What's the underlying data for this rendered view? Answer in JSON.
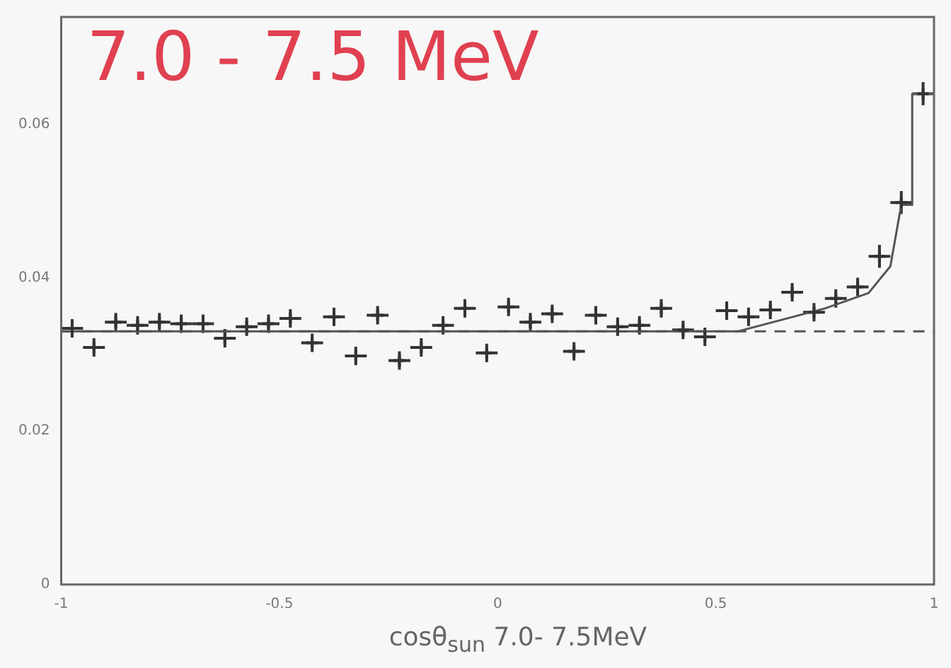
{
  "chart_data": {
    "type": "scatter",
    "xlabel": "cosθ$_{sun}$  7.0- 7.5MeV",
    "annotations": [
      "7.0 - 7.5 MeV"
    ],
    "x": [
      -0.975,
      -0.925,
      -0.875,
      -0.825,
      -0.775,
      -0.725,
      -0.675,
      -0.625,
      -0.575,
      -0.525,
      -0.475,
      -0.425,
      -0.375,
      -0.325,
      -0.275,
      -0.225,
      -0.175,
      -0.125,
      -0.075,
      -0.025,
      0.025,
      0.075,
      0.125,
      0.175,
      0.225,
      0.275,
      0.325,
      0.375,
      0.425,
      0.475,
      0.525,
      0.575,
      0.625,
      0.675,
      0.725,
      0.775,
      0.825,
      0.875,
      0.925,
      0.975
    ],
    "series": [
      {
        "type": "scatter",
        "color": "#333333",
        "marker": "cross",
        "values": [
          0.0334,
          0.0309,
          0.0342,
          0.0338,
          0.0342,
          0.034,
          0.034,
          0.0321,
          0.0336,
          0.034,
          0.0347,
          0.0315,
          0.0349,
          0.0298,
          0.0351,
          0.0292,
          0.0309,
          0.0338,
          0.036,
          0.0302,
          0.0362,
          0.0342,
          0.0353,
          0.0304,
          0.0351,
          0.0336,
          0.0338,
          0.036,
          0.0332,
          0.0323,
          0.0357,
          0.0349,
          0.0358,
          0.0381,
          0.0355,
          0.0373,
          0.0388,
          0.0428,
          0.0498,
          0.064
        ],
        "errors": [
          0.0012,
          0.0012,
          0.0012,
          0.0012,
          0.0012,
          0.0012,
          0.0012,
          0.0012,
          0.0012,
          0.0012,
          0.0012,
          0.0012,
          0.0012,
          0.0012,
          0.0012,
          0.0012,
          0.0012,
          0.0012,
          0.0012,
          0.0012,
          0.0012,
          0.0012,
          0.0012,
          0.0012,
          0.0012,
          0.0012,
          0.0012,
          0.0012,
          0.0012,
          0.0012,
          0.0012,
          0.0012,
          0.0012,
          0.0012,
          0.0012,
          0.0012,
          0.0012,
          0.0015,
          0.0015,
          0.0015
        ],
        "xerrors": [
          0.025,
          0.025,
          0.025,
          0.025,
          0.025,
          0.025,
          0.025,
          0.025,
          0.025,
          0.025,
          0.025,
          0.025,
          0.025,
          0.025,
          0.025,
          0.025,
          0.025,
          0.025,
          0.025,
          0.025,
          0.025,
          0.025,
          0.025,
          0.025,
          0.025,
          0.025,
          0.025,
          0.025,
          0.025,
          0.025,
          0.025,
          0.025,
          0.025,
          0.025,
          0.025,
          0.025,
          0.025,
          0.025,
          0.025,
          0.025
        ]
      },
      {
        "type": "line",
        "color": "#555555",
        "line_style": "solid",
        "x": [
          -1,
          0.55,
          0.65,
          0.75,
          0.85,
          0.9,
          0.925,
          0.95,
          0.95,
          1
        ],
        "values": [
          0.033,
          0.033,
          0.0345,
          0.036,
          0.038,
          0.0415,
          0.0495,
          0.0495,
          0.064,
          0.064
        ]
      }
    ],
    "ref_lines": [
      {
        "axis": "y",
        "value": 0.033,
        "line_style": "dashed",
        "color": "#555555"
      }
    ],
    "xlim": [
      -1,
      1
    ],
    "xticks": [
      -1,
      -0.5,
      0,
      0.5,
      1
    ],
    "ylim": [
      0,
      0.074
    ],
    "yticks": [
      0,
      0.02,
      0.04,
      0.06
    ],
    "grid": false,
    "legend": false
  }
}
